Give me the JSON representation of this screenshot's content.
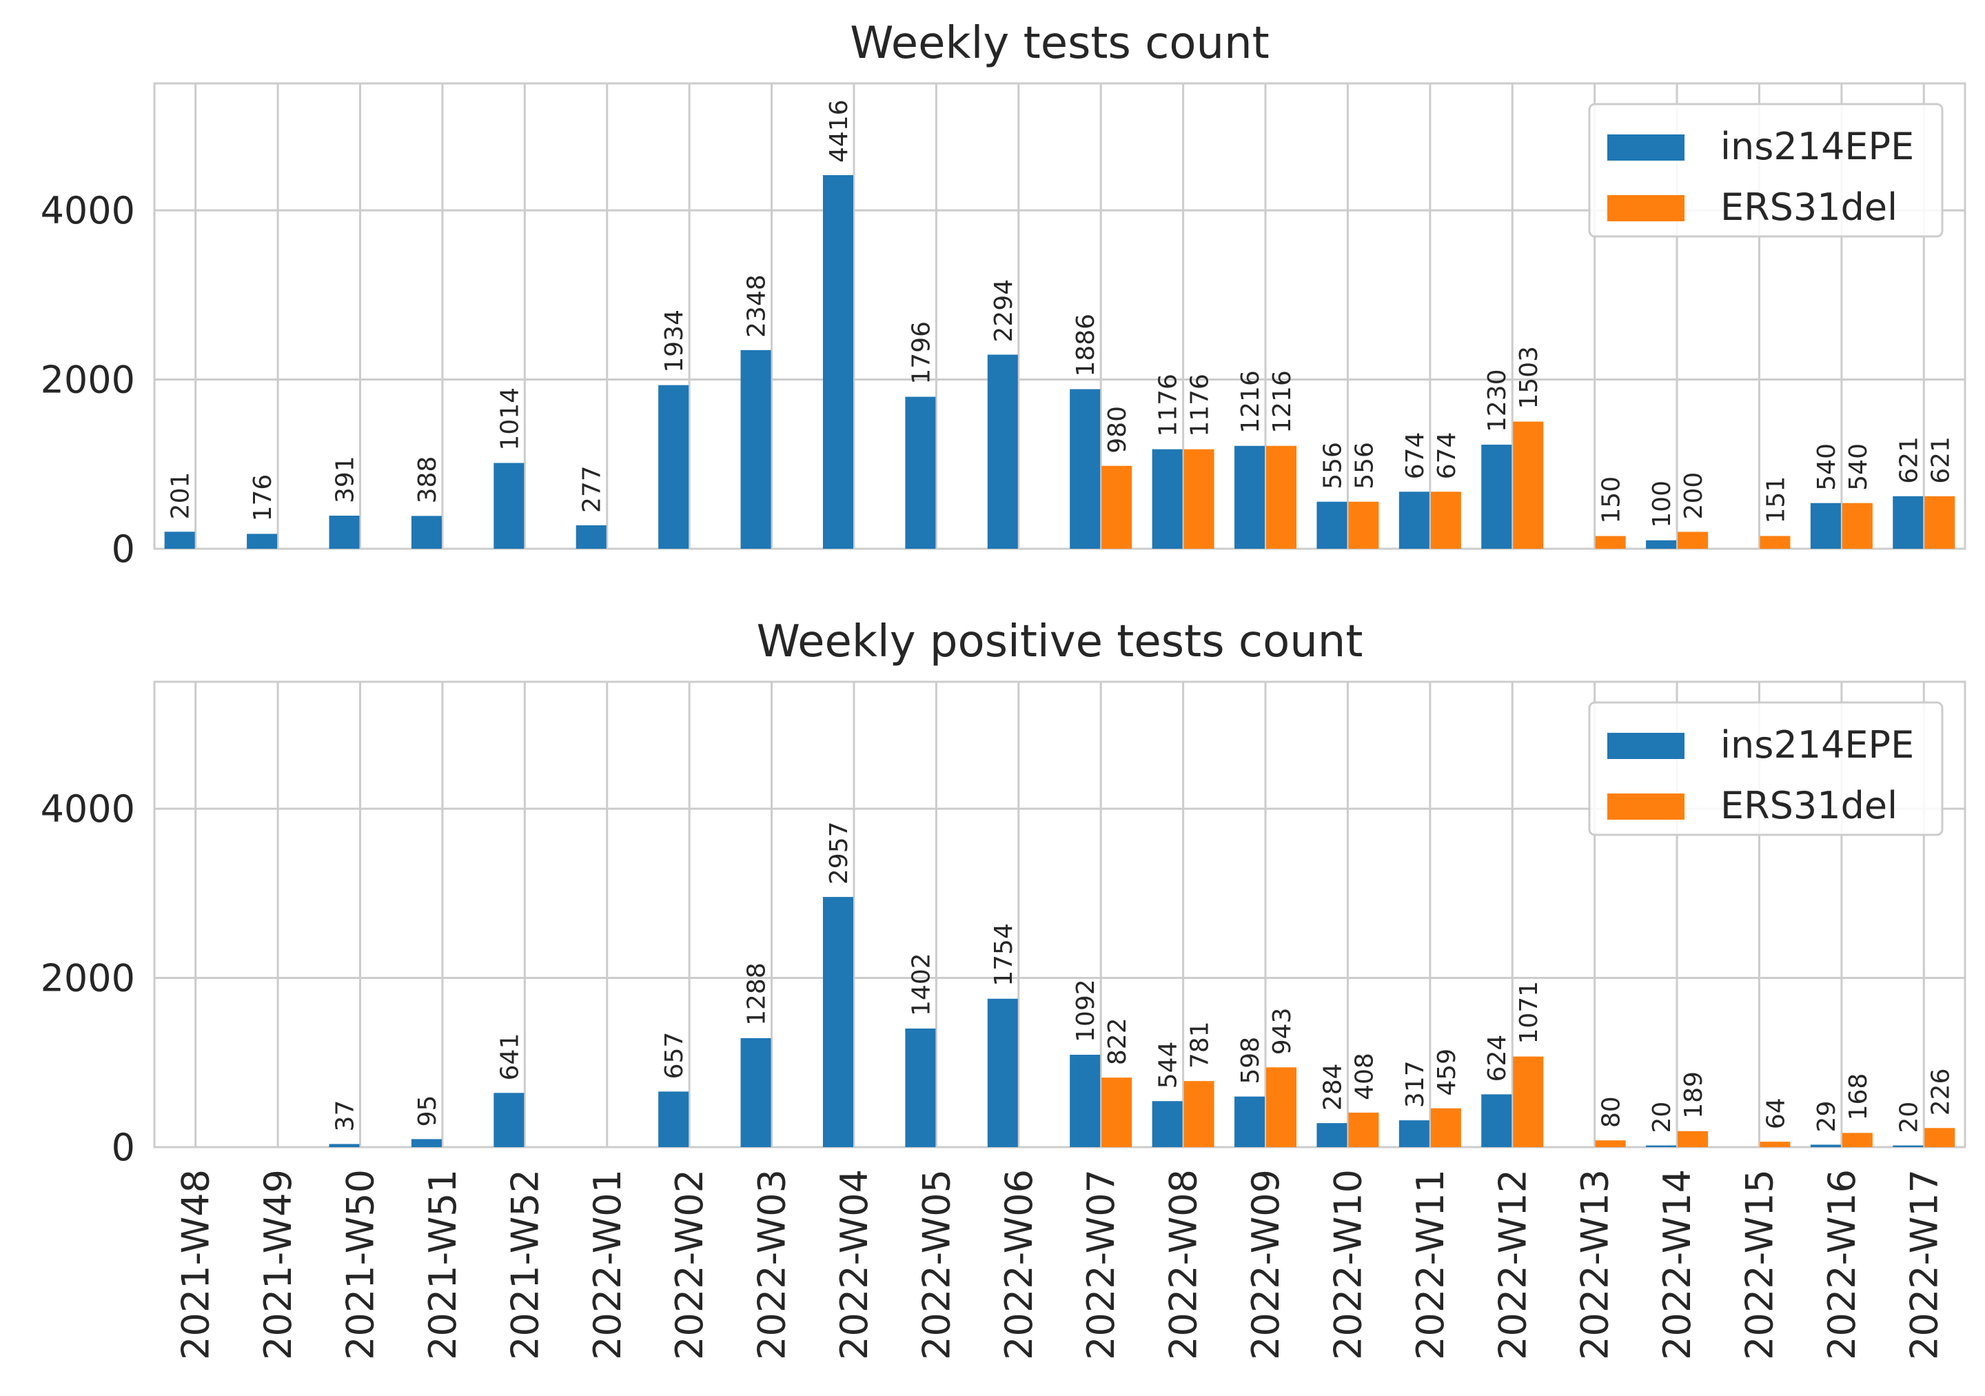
{
  "chart_data": [
    {
      "type": "bar",
      "title": "Weekly tests count",
      "categories": [
        "2021-W48",
        "2021-W49",
        "2021-W50",
        "2021-W51",
        "2021-W52",
        "2022-W01",
        "2022-W02",
        "2022-W03",
        "2022-W04",
        "2022-W05",
        "2022-W06",
        "2022-W07",
        "2022-W08",
        "2022-W09",
        "2022-W10",
        "2022-W11",
        "2022-W12",
        "2022-W13",
        "2022-W14",
        "2022-W15",
        "2022-W16",
        "2022-W17"
      ],
      "ylim": [
        0,
        5500
      ],
      "yticks": [
        "0",
        "2000",
        "4000"
      ],
      "ytick_values": [
        0,
        2000,
        4000
      ],
      "xlabel": "",
      "ylabel": "",
      "legend": "top-right",
      "grid": true,
      "series": [
        {
          "name": "ins214EPE",
          "color": "#1f77b4",
          "values": [
            201,
            176,
            391,
            388,
            1014,
            277,
            1934,
            2348,
            4416,
            1796,
            2294,
            1886,
            1176,
            1216,
            556,
            674,
            1230,
            null,
            100,
            null,
            540,
            621
          ]
        },
        {
          "name": "ERS31del",
          "color": "#ff7f0e",
          "values": [
            null,
            null,
            null,
            null,
            null,
            null,
            null,
            null,
            null,
            null,
            null,
            980,
            1176,
            1216,
            556,
            674,
            1503,
            150,
            200,
            151,
            540,
            621
          ]
        }
      ]
    },
    {
      "type": "bar",
      "title": "Weekly positive tests count",
      "categories": [
        "2021-W48",
        "2021-W49",
        "2021-W50",
        "2021-W51",
        "2021-W52",
        "2022-W01",
        "2022-W02",
        "2022-W03",
        "2022-W04",
        "2022-W05",
        "2022-W06",
        "2022-W07",
        "2022-W08",
        "2022-W09",
        "2022-W10",
        "2022-W11",
        "2022-W12",
        "2022-W13",
        "2022-W14",
        "2022-W15",
        "2022-W16",
        "2022-W17"
      ],
      "ylim": [
        0,
        5500
      ],
      "yticks": [
        "0",
        "2000",
        "4000"
      ],
      "ytick_values": [
        0,
        2000,
        4000
      ],
      "xlabel": "",
      "ylabel": "",
      "legend": "top-right",
      "grid": true,
      "series": [
        {
          "name": "ins214EPE",
          "color": "#1f77b4",
          "values": [
            null,
            null,
            37,
            95,
            641,
            null,
            657,
            1288,
            2957,
            1402,
            1754,
            1092,
            544,
            598,
            284,
            317,
            624,
            null,
            20,
            null,
            29,
            20
          ]
        },
        {
          "name": "ERS31del",
          "color": "#ff7f0e",
          "values": [
            null,
            null,
            null,
            null,
            null,
            null,
            null,
            null,
            null,
            null,
            null,
            822,
            781,
            943,
            408,
            459,
            1071,
            80,
            189,
            64,
            168,
            226
          ]
        }
      ]
    }
  ]
}
